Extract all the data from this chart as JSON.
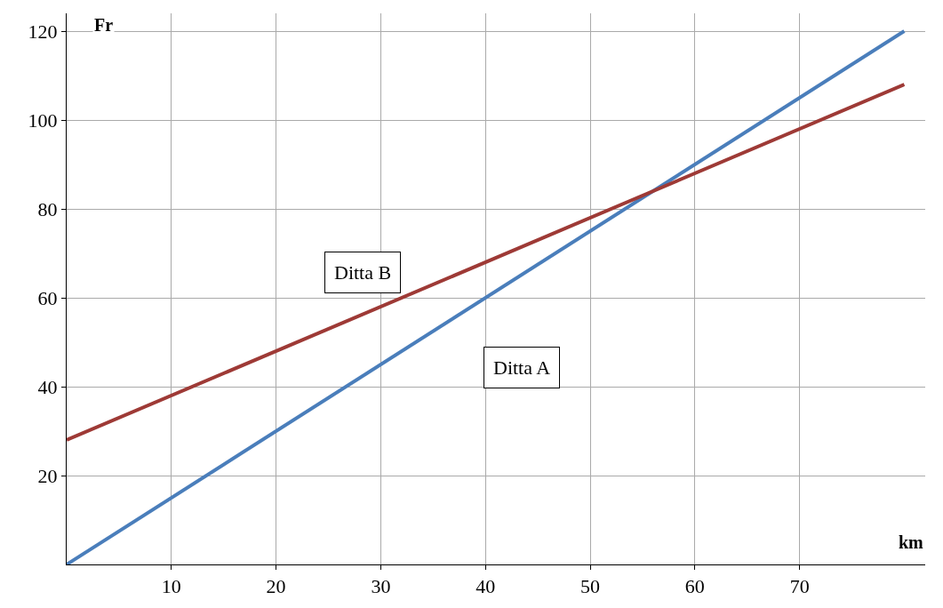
{
  "chart_data": {
    "type": "line",
    "xlabel": "km",
    "ylabel": "Fr",
    "xlim": [
      0,
      82
    ],
    "xticks": [
      10,
      20,
      30,
      40,
      50,
      60,
      70
    ],
    "ylim": [
      0,
      124
    ],
    "yticks": [
      20,
      40,
      60,
      80,
      100,
      120
    ],
    "x": [
      0,
      80
    ],
    "grid": true,
    "legend": false,
    "marker": "none",
    "line_style": "solid",
    "series": [
      {
        "name": "Ditta A",
        "color": "#4a7ebb",
        "values": [
          0,
          120
        ]
      },
      {
        "name": "Ditta B",
        "color": "#9e3a36",
        "values": [
          28,
          108
        ]
      }
    ]
  }
}
